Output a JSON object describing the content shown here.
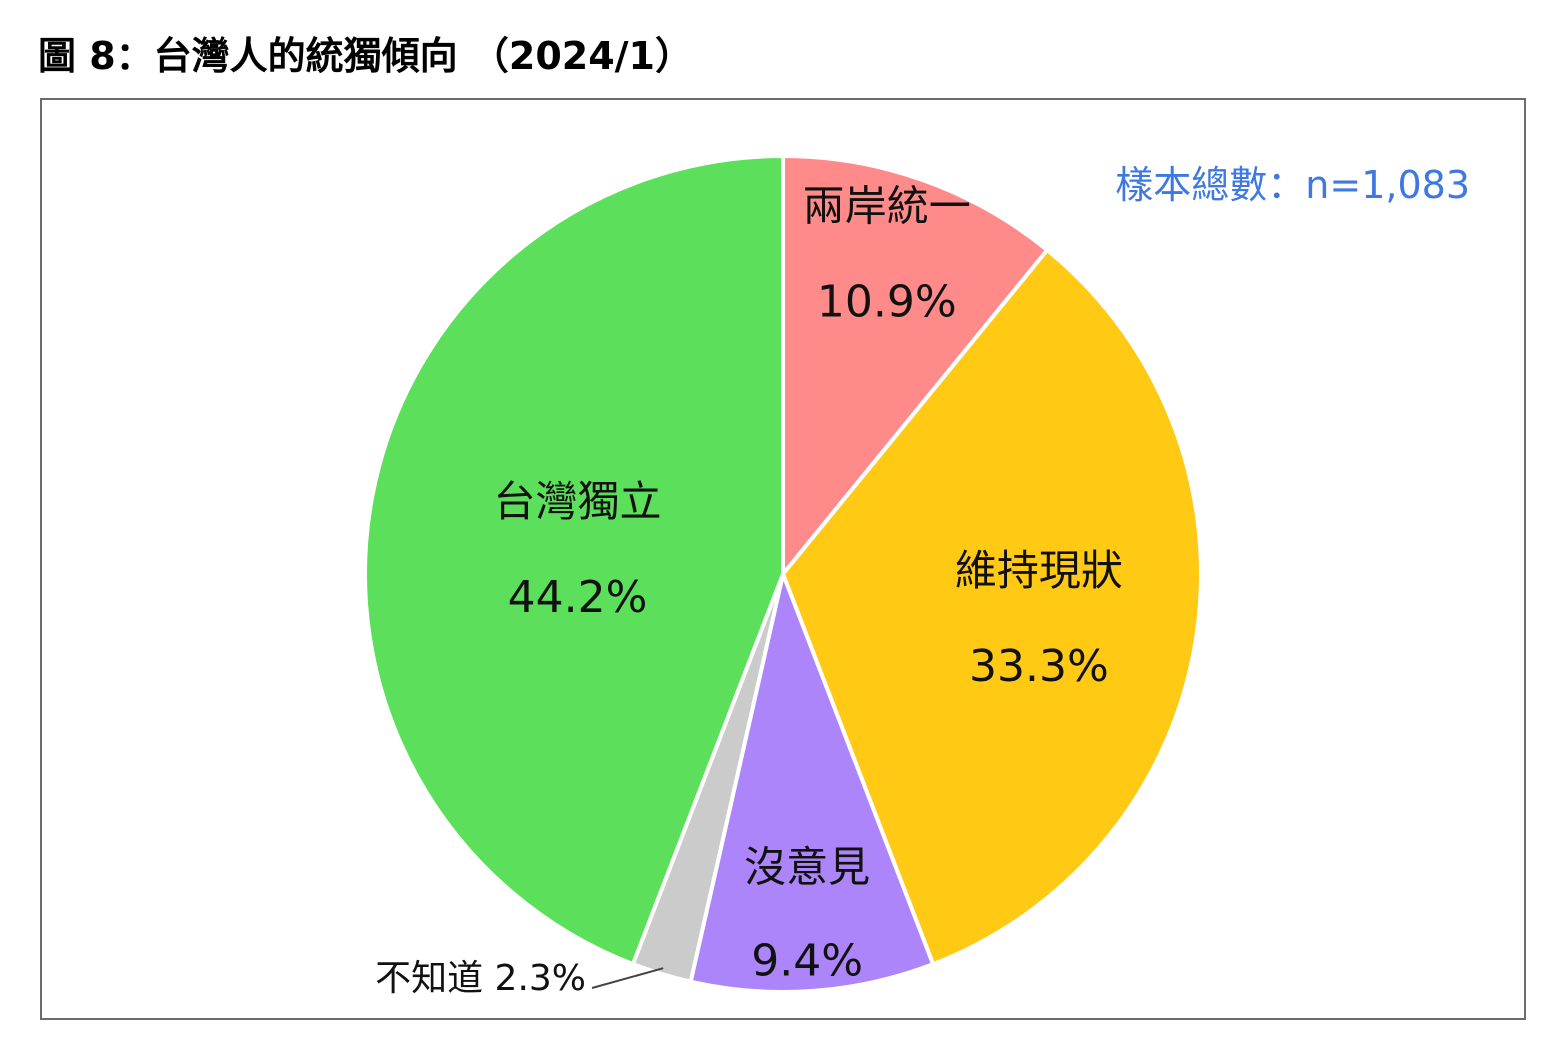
{
  "figure": {
    "title": "圖 8：台灣人的統獨傾向 （2024/1）",
    "sample_size": "樣本總數：n=1,083"
  },
  "colors": {
    "slice_unification": "#fe8a8a",
    "slice_status_quo": "#ffc914",
    "slice_no_opinion": "#ac85fa",
    "slice_dont_know": "#cbcbcb",
    "slice_independence": "#5cdf5a",
    "sample_size_text": "#3f78e0"
  },
  "chart_data": {
    "type": "pie",
    "title": "圖 8：台灣人的統獨傾向 （2024/1）",
    "start_angle": "12 o'clock",
    "direction": "clockwise",
    "slices": [
      {
        "key": "unification",
        "name": "兩岸統一",
        "value": 10.9,
        "label": "10.9%",
        "color": "#fe8a8a"
      },
      {
        "key": "status_quo",
        "name": "維持現狀",
        "value": 33.3,
        "label": "33.3%",
        "color": "#ffc914"
      },
      {
        "key": "no_opinion",
        "name": "沒意見",
        "value": 9.4,
        "label": "9.4%",
        "color": "#ac85fa"
      },
      {
        "key": "dont_know",
        "name": "不知道",
        "value": 2.3,
        "label": "2.3%",
        "color": "#cbcbcb",
        "label_position": "outside-leader"
      },
      {
        "key": "independence",
        "name": "台灣獨立",
        "value": 44.2,
        "label": "44.2%",
        "color": "#5cdf5a"
      }
    ]
  }
}
